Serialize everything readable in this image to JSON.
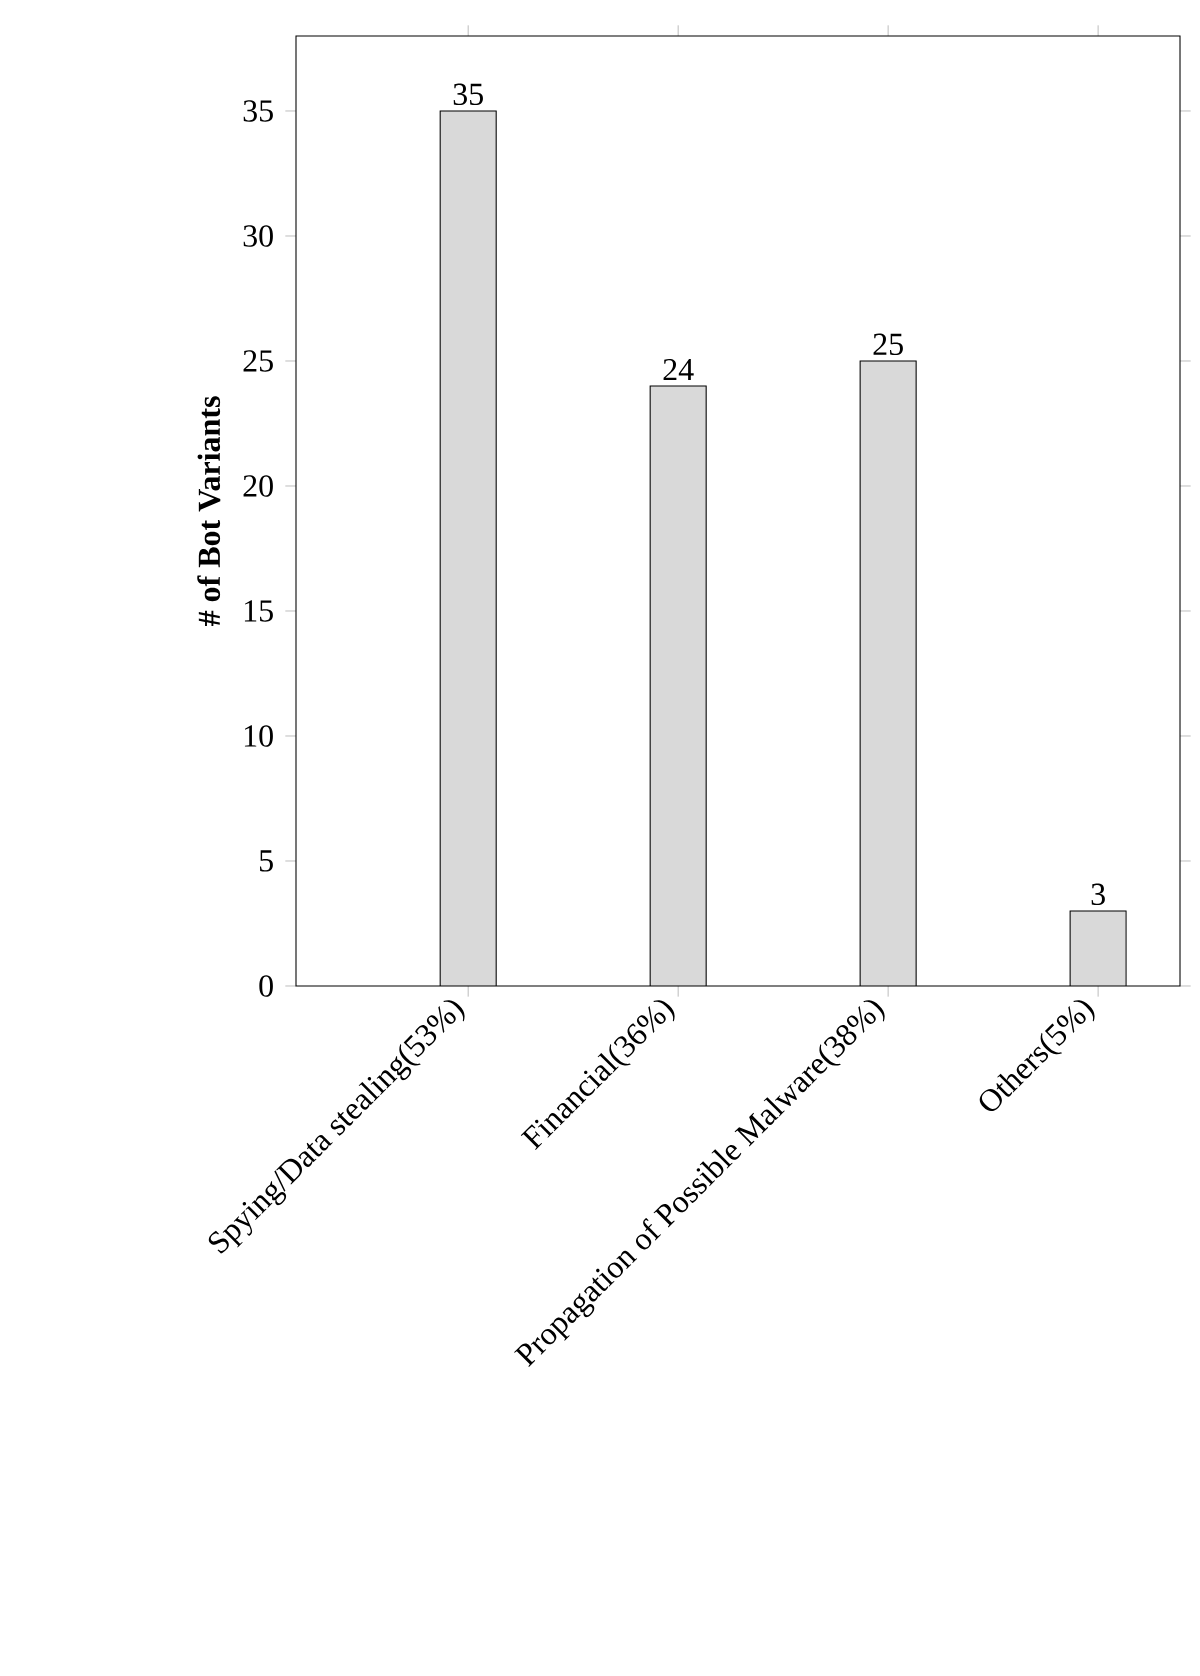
{
  "chart_data": {
    "type": "bar",
    "ylabel": "# of Bot Variants",
    "categories": [
      "Spying/Data stealing(53%)",
      "Financial(36%)",
      "Propagation of Possible Malware(38%)",
      "Others(5%)"
    ],
    "values": [
      35,
      24,
      25,
      3
    ],
    "color": "#d9d9d9",
    "ylim": [
      0,
      38
    ],
    "yticks": [
      0,
      5,
      10,
      15,
      20,
      25,
      30,
      35
    ],
    "data_labels": true
  }
}
